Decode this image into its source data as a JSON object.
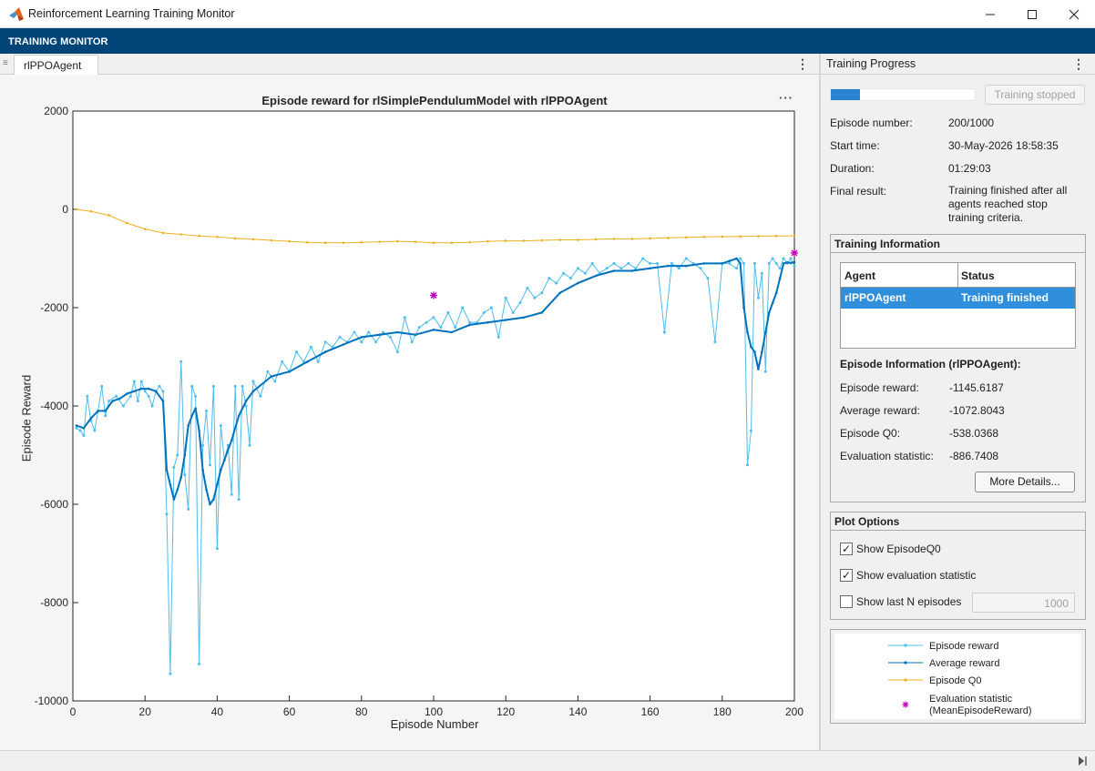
{
  "window": {
    "title": "Reinforcement Learning Training Monitor"
  },
  "toolstrip": {
    "label": "TRAINING MONITOR"
  },
  "document_tab": {
    "label": "rlPPOAgent"
  },
  "plot": {
    "title": "Episode reward for rlSimplePendulumModel with rlPPOAgent",
    "more_label": "···"
  },
  "progress": {
    "title": "Training Progress",
    "fraction": 0.2,
    "stop_button": "Training stopped",
    "rows": [
      {
        "label": "Episode number:",
        "value": "200/1000"
      },
      {
        "label": "Start time:",
        "value": "30-May-2026 18:58:35"
      },
      {
        "label": "Duration:",
        "value": "01:29:03"
      },
      {
        "label": "Final result:",
        "value": "Training finished after all agents reached stop training criteria."
      }
    ]
  },
  "training_info": {
    "title": "Training Information",
    "columns": [
      "Agent",
      "Status"
    ],
    "rows": [
      {
        "agent": "rlPPOAgent",
        "status": "Training finished"
      }
    ],
    "episode_info_title": "Episode Information (rlPPOAgent):",
    "episode_info": [
      {
        "label": "Episode reward:",
        "value": "-1145.6187"
      },
      {
        "label": "Average reward:",
        "value": "-1072.8043"
      },
      {
        "label": "Episode Q0:",
        "value": "-538.0368"
      },
      {
        "label": "Evaluation statistic:",
        "value": "-886.7408"
      }
    ],
    "details_button": "More Details..."
  },
  "plot_options": {
    "title": "Plot Options",
    "show_q0": {
      "label": "Show EpisodeQ0",
      "checked": true
    },
    "show_eval": {
      "label": "Show evaluation statistic",
      "checked": true
    },
    "show_lastn": {
      "label": "Show last N episodes",
      "checked": false
    },
    "lastn_value": "1000"
  },
  "legend": [
    {
      "label": "Episode reward",
      "color": "#4dbeee"
    },
    {
      "label": "Average reward",
      "color": "#0072bd"
    },
    {
      "label": "Episode Q0",
      "color": "#edb120"
    },
    {
      "label": "Evaluation statistic (MeanEpisodeReward)",
      "label_line1": "Evaluation statistic",
      "label_line2": "(MeanEpisodeReward)",
      "color": "#c000c0"
    }
  ],
  "chart_data": {
    "type": "line",
    "title": "Episode reward for rlSimplePendulumModel with rlPPOAgent",
    "xlabel": "Episode Number",
    "ylabel": "Episode Reward",
    "xlim": [
      0,
      200
    ],
    "ylim": [
      -10000,
      2000
    ],
    "xticks": [
      0,
      20,
      40,
      60,
      80,
      100,
      120,
      140,
      160,
      180,
      200
    ],
    "yticks": [
      -10000,
      -8000,
      -6000,
      -4000,
      -2000,
      0,
      2000
    ],
    "grid": false,
    "series": [
      {
        "name": "Episode reward",
        "color": "#4dbeee",
        "x": [
          1,
          2,
          3,
          4,
          5,
          6,
          7,
          8,
          9,
          10,
          12,
          14,
          16,
          17,
          18,
          19,
          20,
          21,
          22,
          23,
          24,
          25,
          26,
          27,
          28,
          29,
          30,
          31,
          32,
          33,
          34,
          35,
          36,
          37,
          38,
          39,
          40,
          41,
          42,
          43,
          44,
          45,
          46,
          47,
          48,
          49,
          50,
          52,
          54,
          56,
          58,
          60,
          62,
          64,
          66,
          68,
          70,
          72,
          74,
          76,
          78,
          80,
          82,
          84,
          86,
          88,
          90,
          92,
          94,
          96,
          98,
          100,
          102,
          104,
          106,
          108,
          110,
          112,
          114,
          116,
          118,
          120,
          122,
          124,
          126,
          128,
          130,
          132,
          134,
          136,
          138,
          140,
          142,
          144,
          146,
          148,
          150,
          152,
          154,
          156,
          158,
          160,
          162,
          164,
          166,
          168,
          170,
          172,
          174,
          176,
          178,
          180,
          182,
          184,
          185,
          186,
          187,
          188,
          189,
          190,
          191,
          192,
          193,
          194,
          195,
          196,
          197,
          198,
          199,
          200
        ],
        "y": [
          -4450,
          -4500,
          -4600,
          -3800,
          -4300,
          -4500,
          -4100,
          -3600,
          -4200,
          -3900,
          -3800,
          -4000,
          -3800,
          -3500,
          -3900,
          -3500,
          -3700,
          -3800,
          -4000,
          -3700,
          -3600,
          -3700,
          -6200,
          -9450,
          -5250,
          -5000,
          -3100,
          -5400,
          -6100,
          -3600,
          -3800,
          -9250,
          -4800,
          -4100,
          -5200,
          -3600,
          -6900,
          -4400,
          -5100,
          -4800,
          -5800,
          -3600,
          -5900,
          -3600,
          -4000,
          -4800,
          -3500,
          -3800,
          -3300,
          -3500,
          -3100,
          -3300,
          -2900,
          -3100,
          -2800,
          -3100,
          -2700,
          -2800,
          -2600,
          -2700,
          -2500,
          -2700,
          -2500,
          -2700,
          -2500,
          -2600,
          -2900,
          -2200,
          -2700,
          -2400,
          -2300,
          -2200,
          -2400,
          -2100,
          -2400,
          -2000,
          -2300,
          -2300,
          -2100,
          -2000,
          -2600,
          -1800,
          -2100,
          -1900,
          -1600,
          -1800,
          -1700,
          -1400,
          -1500,
          -1300,
          -1400,
          -1200,
          -1300,
          -1100,
          -1300,
          -1200,
          -1100,
          -1200,
          -1100,
          -1200,
          -1000,
          -1100,
          -1100,
          -2500,
          -1100,
          -1200,
          -1000,
          -1100,
          -1200,
          -1400,
          -2700,
          -1100,
          -1100,
          -1200,
          -1000,
          -1100,
          -5200,
          -4500,
          -1100,
          -1800,
          -1300,
          -3300,
          -1100,
          -1000,
          -1100,
          -1200,
          -1000,
          -1100,
          -1000,
          -1150
        ]
      },
      {
        "name": "Average reward",
        "color": "#0072bd",
        "x": [
          1,
          3,
          5,
          7,
          9,
          11,
          13,
          15,
          17,
          19,
          21,
          23,
          25,
          26,
          27,
          28,
          29,
          30,
          31,
          32,
          33,
          34,
          35,
          36,
          37,
          38,
          39,
          40,
          41,
          42,
          44,
          46,
          48,
          50,
          55,
          60,
          65,
          70,
          75,
          80,
          85,
          90,
          95,
          100,
          105,
          110,
          115,
          120,
          125,
          130,
          135,
          140,
          145,
          150,
          155,
          160,
          165,
          170,
          175,
          180,
          182,
          184,
          185,
          186,
          187,
          188,
          189,
          190,
          191,
          192,
          193,
          194,
          195,
          196,
          197,
          198,
          199,
          200
        ],
        "y": [
          -4400,
          -4450,
          -4250,
          -4100,
          -4100,
          -3900,
          -3850,
          -3750,
          -3700,
          -3650,
          -3650,
          -3700,
          -3900,
          -5300,
          -5600,
          -5900,
          -5700,
          -5450,
          -5000,
          -4400,
          -4200,
          -4050,
          -4500,
          -5300,
          -5700,
          -6000,
          -5900,
          -5600,
          -5300,
          -5100,
          -4700,
          -4200,
          -3900,
          -3700,
          -3400,
          -3300,
          -3100,
          -2900,
          -2750,
          -2600,
          -2550,
          -2500,
          -2550,
          -2450,
          -2500,
          -2350,
          -2300,
          -2250,
          -2200,
          -2100,
          -1700,
          -1500,
          -1350,
          -1250,
          -1250,
          -1200,
          -1150,
          -1150,
          -1100,
          -1100,
          -1050,
          -1000,
          -1100,
          -2000,
          -2500,
          -2800,
          -2900,
          -3250,
          -2900,
          -2500,
          -2100,
          -1900,
          -1700,
          -1400,
          -1100,
          -1080,
          -1090,
          -1073
        ]
      },
      {
        "name": "Episode Q0",
        "color": "#edb120",
        "x": [
          1,
          5,
          10,
          15,
          20,
          25,
          30,
          35,
          40,
          45,
          50,
          55,
          60,
          65,
          70,
          75,
          80,
          85,
          90,
          95,
          100,
          105,
          110,
          115,
          120,
          125,
          130,
          135,
          140,
          145,
          150,
          155,
          160,
          165,
          170,
          175,
          180,
          185,
          190,
          195,
          200
        ],
        "y": [
          0,
          -40,
          -120,
          -280,
          -400,
          -480,
          -510,
          -540,
          -560,
          -590,
          -610,
          -630,
          -650,
          -670,
          -680,
          -680,
          -670,
          -660,
          -650,
          -660,
          -680,
          -680,
          -670,
          -650,
          -640,
          -640,
          -630,
          -620,
          -620,
          -610,
          -600,
          -600,
          -590,
          -580,
          -570,
          -560,
          -555,
          -550,
          -545,
          -540,
          -538
        ]
      },
      {
        "name": "Evaluation statistic (MeanEpisodeReward)",
        "color": "#c000c0",
        "x": [
          100,
          200
        ],
        "y": [
          -1750,
          -887
        ]
      }
    ]
  }
}
